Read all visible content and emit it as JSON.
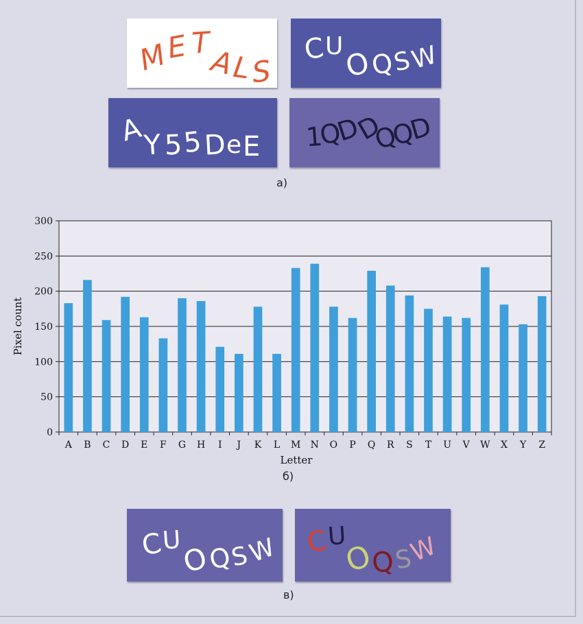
{
  "panel_a": {
    "caption": "а)",
    "captchas": [
      {
        "text": "METALS",
        "bg": "#ffffff",
        "fg": "#e15b36"
      },
      {
        "text": "CUOQSW",
        "bg": "#5257a3",
        "fg": "#ffffff"
      },
      {
        "text": "AY55DeE",
        "bg": "#5257a3",
        "fg": "#ffffff"
      },
      {
        "text": "1QDDQQD",
        "bg": "#6a66a8",
        "fg": "#1d1a3d"
      }
    ]
  },
  "panel_b": {
    "caption": "б)"
  },
  "panel_c": {
    "caption": "в)",
    "captchas": [
      {
        "text": "CUOQSW",
        "bg": "#6763a8",
        "fg": "#ffffff"
      },
      {
        "text": "CUOQSW",
        "bg": "#6763a8",
        "letter_colors": [
          "#d8412e",
          "#1e1b45",
          "#c9d27a",
          "#7d1b1f",
          "#9c9a9c",
          "#e8a5b3"
        ]
      }
    ]
  },
  "chart_data": {
    "type": "bar",
    "categories": [
      "A",
      "B",
      "C",
      "D",
      "E",
      "F",
      "G",
      "H",
      "I",
      "J",
      "K",
      "L",
      "M",
      "N",
      "O",
      "P",
      "Q",
      "R",
      "S",
      "T",
      "U",
      "V",
      "W",
      "X",
      "Y",
      "Z"
    ],
    "values": [
      183,
      216,
      159,
      192,
      163,
      133,
      190,
      186,
      121,
      111,
      178,
      111,
      233,
      239,
      178,
      162,
      229,
      208,
      194,
      175,
      164,
      162,
      234,
      181,
      153,
      193
    ],
    "title": "",
    "xlabel": "Letter",
    "ylabel": "Pixel count",
    "ylim": [
      0,
      300
    ],
    "yticks": [
      0,
      50,
      100,
      150,
      200,
      250,
      300
    ],
    "grid": true,
    "bar_color": "#3f9fdb"
  }
}
